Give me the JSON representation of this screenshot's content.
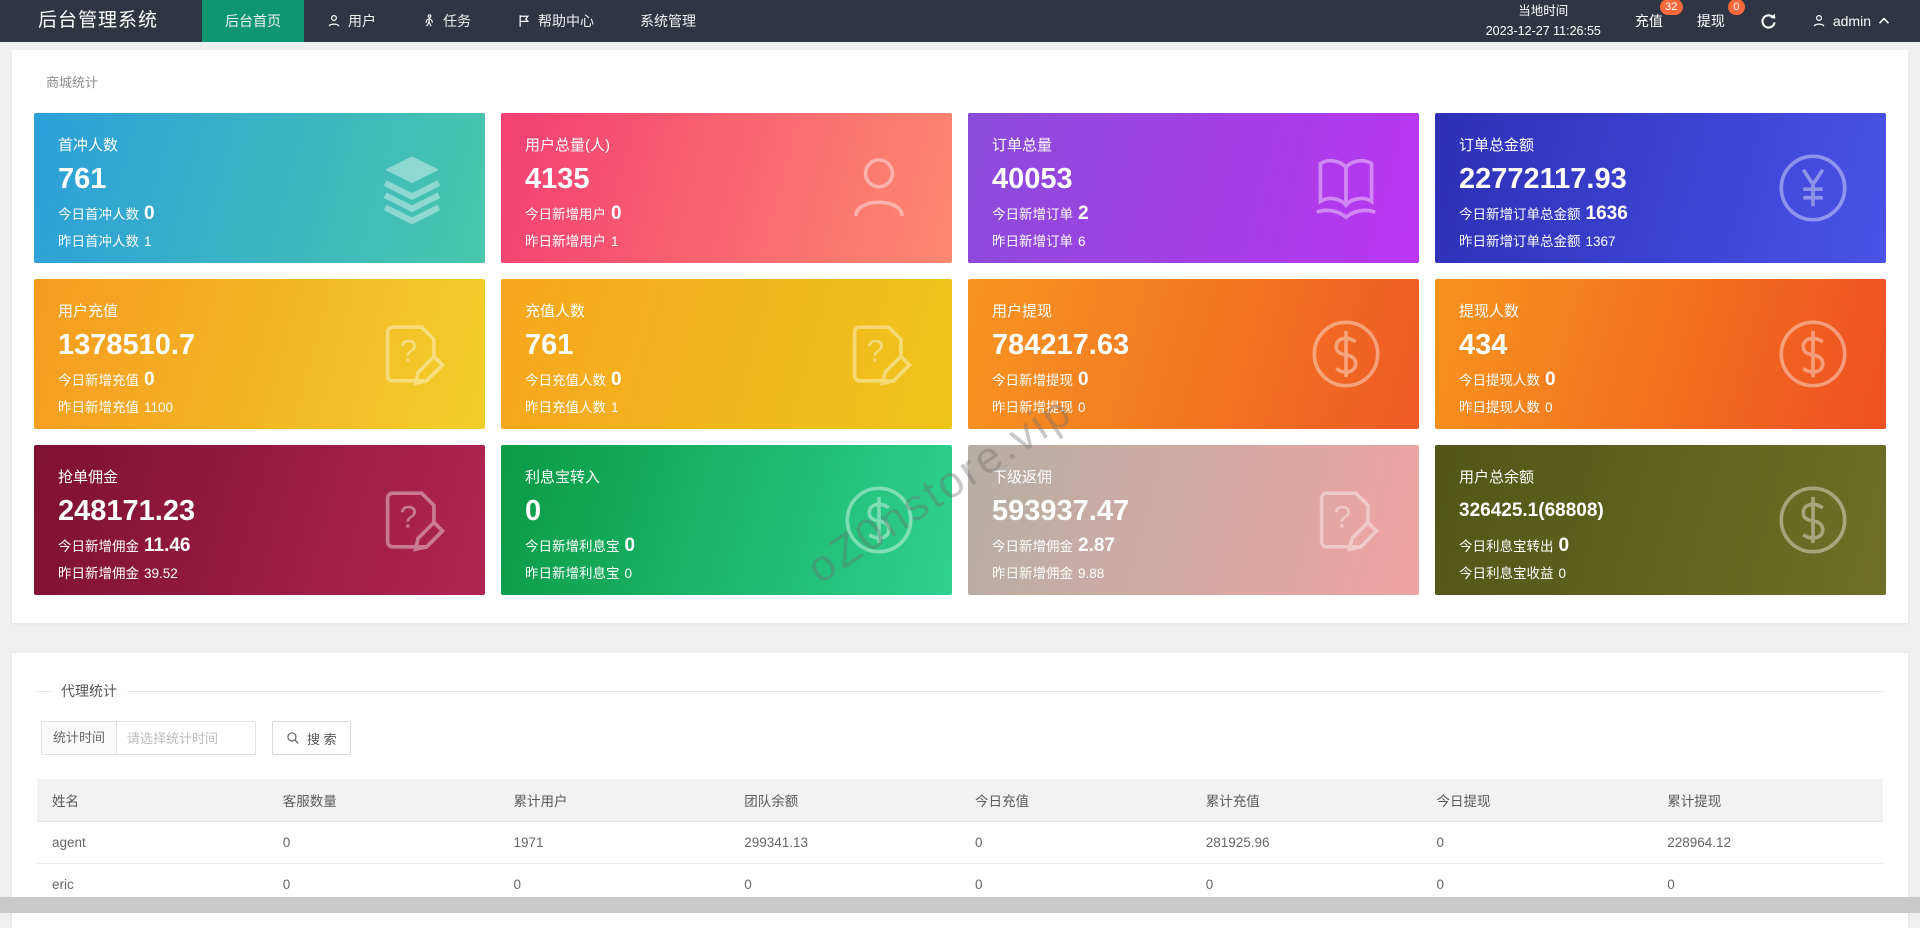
{
  "navbar": {
    "bg_color": "#2f3542",
    "active_color": "#0e9670",
    "badge_color": "#fa693c",
    "brand": "后台管理系统",
    "menu": [
      {
        "name": "home",
        "label": "后台首页",
        "icon": null,
        "active": true
      },
      {
        "name": "users",
        "label": "用户",
        "icon": "user-icon",
        "active": false
      },
      {
        "name": "tasks",
        "label": "任务",
        "icon": "task-icon",
        "active": false
      },
      {
        "name": "help",
        "label": "帮助中心",
        "icon": "flag-icon",
        "active": false
      },
      {
        "name": "system",
        "label": "系统管理",
        "icon": null,
        "active": false
      }
    ],
    "local_time_label": "当地时间",
    "local_time_value": "2023-12-27 11:26:55",
    "actions": [
      {
        "name": "recharge",
        "label": "充值",
        "badge": "32"
      },
      {
        "name": "withdraw",
        "label": "提现",
        "badge": "0"
      }
    ],
    "username": "admin"
  },
  "mall_stats": {
    "title": "商城统计",
    "cards": [
      {
        "name": "first-charge-users",
        "title": "首冲人数",
        "value": "761",
        "today_label": "今日首冲人数",
        "today_value": "0",
        "yesterday_label": "昨日首冲人数",
        "yesterday_value": "1",
        "icon": "layers-icon",
        "colors": [
          "#2d9fdb",
          "#49c7ab"
        ],
        "small_value": false
      },
      {
        "name": "total-users",
        "title": "用户总量(人)",
        "value": "4135",
        "today_label": "今日新增用户",
        "today_value": "0",
        "yesterday_label": "昨日新增用户",
        "yesterday_value": "1",
        "icon": "user-big-icon",
        "colors": [
          "#f43f72",
          "#fd8a70"
        ],
        "small_value": false
      },
      {
        "name": "total-orders",
        "title": "订单总量",
        "value": "40053",
        "today_label": "今日新增订单",
        "today_value": "2",
        "yesterday_label": "昨日新增订单",
        "yesterday_value": "6",
        "icon": "book-icon",
        "colors": [
          "#8a4bd8",
          "#bb36f2"
        ],
        "small_value": false
      },
      {
        "name": "total-order-amount",
        "title": "订单总金额",
        "value": "22772117.93",
        "today_label": "今日新增订单总金额",
        "today_value": "1636",
        "yesterday_label": "昨日新增订单总金额",
        "yesterday_value": "1367",
        "icon": "yen-circle-icon",
        "colors": [
          "#2d30b5",
          "#4a52e8"
        ],
        "small_value": false
      },
      {
        "name": "user-recharge",
        "title": "用户充值",
        "value": "1378510.7",
        "today_label": "今日新增充值",
        "today_value": "0",
        "yesterday_label": "昨日新增充值",
        "yesterday_value": "1100",
        "icon": "note-edit-icon",
        "colors": [
          "#f59b20",
          "#f2cf2a"
        ],
        "small_value": false
      },
      {
        "name": "recharge-users",
        "title": "充值人数",
        "value": "761",
        "today_label": "今日充值人数",
        "today_value": "0",
        "yesterday_label": "昨日充值人数",
        "yesterday_value": "1",
        "icon": "note-edit-icon",
        "colors": [
          "#f6a61f",
          "#eec51b"
        ],
        "small_value": false
      },
      {
        "name": "user-withdraw",
        "title": "用户提现",
        "value": "784217.63",
        "today_label": "今日新增提现",
        "today_value": "0",
        "yesterday_label": "昨日新增提现",
        "yesterday_value": "0",
        "icon": "dollar-circle-icon",
        "colors": [
          "#f79522",
          "#ee5a23"
        ],
        "small_value": false
      },
      {
        "name": "withdraw-users",
        "title": "提现人数",
        "value": "434",
        "today_label": "今日提现人数",
        "today_value": "0",
        "yesterday_label": "昨日提现人数",
        "yesterday_value": "0",
        "icon": "dollar-circle-icon",
        "colors": [
          "#f7941e",
          "#ee4f22"
        ],
        "small_value": false
      },
      {
        "name": "order-commission",
        "title": "抢单佣金",
        "value": "248171.23",
        "today_label": "今日新增佣金",
        "today_value": "11.46",
        "yesterday_label": "昨日新增佣金",
        "yesterday_value": "39.52",
        "icon": "note-edit-icon",
        "colors": [
          "#7d1132",
          "#b02551"
        ],
        "small_value": false
      },
      {
        "name": "interest-transfer-in",
        "title": "利息宝转入",
        "value": "0",
        "today_label": "今日新增利息宝",
        "today_value": "0",
        "yesterday_label": "昨日新增利息宝",
        "yesterday_value": "0",
        "icon": "dollar-circle-icon",
        "colors": [
          "#0a9a45",
          "#2fd190"
        ],
        "small_value": false
      },
      {
        "name": "subordinate-rebate",
        "title": "下级返佣",
        "value": "593937.47",
        "today_label": "今日新增佣金",
        "today_value": "2.87",
        "yesterday_label": "昨日新增佣金",
        "yesterday_value": "9.88",
        "icon": "note-edit-icon",
        "colors": [
          "#b5afa4",
          "#f0a3a3"
        ],
        "small_value": false
      },
      {
        "name": "user-total-balance",
        "title": "用户总余额",
        "value": "326425.1(68808)",
        "today_label": "今日利息宝转出",
        "today_value": "0",
        "yesterday_label": "今日利息宝收益",
        "yesterday_value": "0",
        "icon": "dollar-circle-icon",
        "colors": [
          "#515617",
          "#6d7026"
        ],
        "small_value": true
      }
    ]
  },
  "watermark": {
    "text": "oZ0nstore.vip"
  },
  "agent_stats": {
    "title": "代理统计",
    "time_filter_label": "统计时间",
    "time_filter_placeholder": "请选择统计时间",
    "search_button_label": "搜 索",
    "table": {
      "headers": [
        "姓名",
        "客服数量",
        "累计用户",
        "团队余额",
        "今日充值",
        "累计充值",
        "今日提现",
        "累计提现"
      ],
      "rows": [
        [
          "agent",
          "0",
          "1971",
          "299341.13",
          "0",
          "281925.96",
          "0",
          "228964.12"
        ],
        [
          "eric",
          "0",
          "0",
          "0",
          "0",
          "0",
          "0",
          "0"
        ]
      ]
    }
  }
}
